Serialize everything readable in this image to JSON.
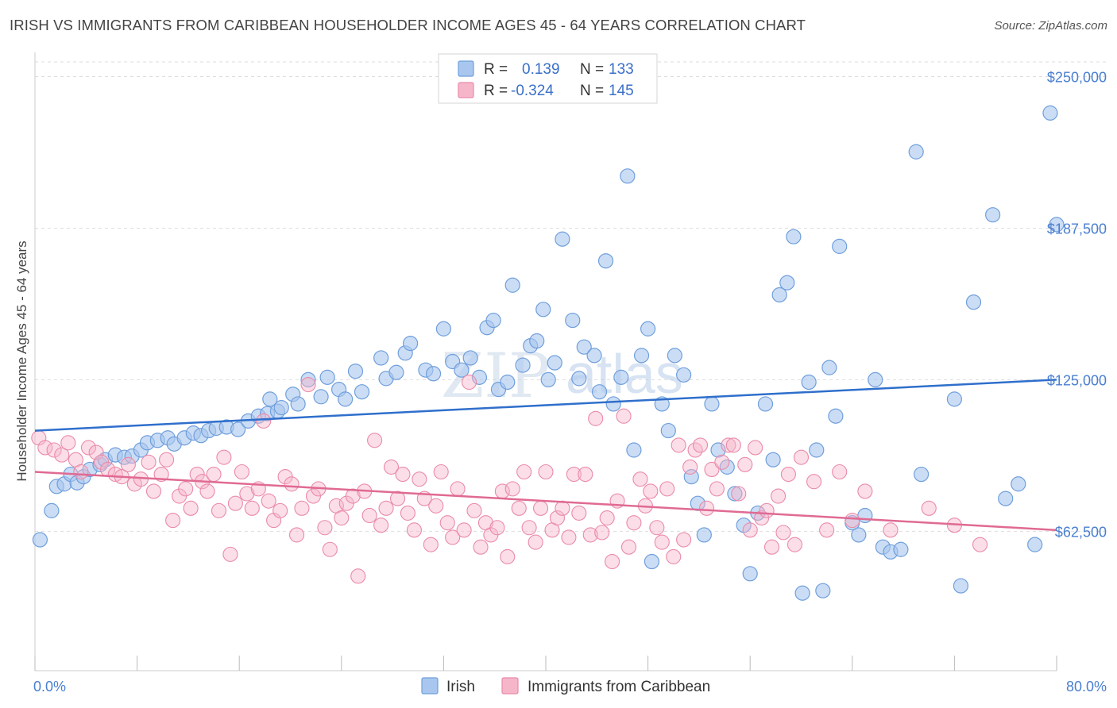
{
  "title": "IRISH VS IMMIGRANTS FROM CARIBBEAN HOUSEHOLDER INCOME AGES 45 - 64 YEARS CORRELATION CHART",
  "source": "Source: ZipAtlas.com",
  "watermark": {
    "zip": "ZIP",
    "atlas": "atlas"
  },
  "colors": {
    "irish_fill": "#a9c7ee",
    "irish_stroke": "#6f9fdc",
    "irish_line": "#2f6fcc",
    "carib_fill": "#f6b6c9",
    "carib_stroke": "#ea8aaa",
    "carib_line": "#e06a93",
    "grid": "#dddddd",
    "axis_text": "#4a7fd0"
  },
  "legend": {
    "rows": [
      {
        "r_label": "R =",
        "r_value": "0.139",
        "n_label": "N =",
        "n_value": "133"
      },
      {
        "r_label": "R =",
        "r_value": "-0.324",
        "n_label": "N =",
        "n_value": "145"
      }
    ]
  },
  "chart_data": {
    "type": "scatter",
    "title": "IRISH VS IMMIGRANTS FROM CARIBBEAN HOUSEHOLDER INCOME AGES 45 - 64 YEARS CORRELATION CHART",
    "ylabel": "Householder Income Ages 45 - 64 years",
    "xlim": [
      0,
      80
    ],
    "ylim": [
      5000,
      260000
    ],
    "x_tick_labels": [
      "0.0%",
      "80.0%"
    ],
    "y_ticks": [
      62500,
      125000,
      187500,
      250000
    ],
    "y_tick_labels": [
      "$62,500",
      "$125,000",
      "$187,500",
      "$250,000"
    ],
    "grid": true,
    "legend_placement": "top-center",
    "series": [
      {
        "name": "Irish",
        "trend": {
          "x": [
            0,
            80
          ],
          "y": [
            104000,
            125000
          ]
        },
        "points": [
          [
            0.4,
            59000
          ],
          [
            1.3,
            71000
          ],
          [
            1.7,
            81000
          ],
          [
            2.3,
            82000
          ],
          [
            2.8,
            86000
          ],
          [
            3.3,
            82500
          ],
          [
            3.8,
            85000
          ],
          [
            4.3,
            88000
          ],
          [
            5.1,
            90000
          ],
          [
            5.5,
            92000
          ],
          [
            6.3,
            94000
          ],
          [
            7.0,
            93000
          ],
          [
            7.6,
            93500
          ],
          [
            8.3,
            96000
          ],
          [
            8.8,
            99000
          ],
          [
            9.6,
            100000
          ],
          [
            10.4,
            101000
          ],
          [
            10.9,
            98500
          ],
          [
            11.7,
            101000
          ],
          [
            12.4,
            103000
          ],
          [
            13.0,
            102000
          ],
          [
            13.6,
            104000
          ],
          [
            14.2,
            105000
          ],
          [
            15.0,
            105500
          ],
          [
            15.9,
            104500
          ],
          [
            16.7,
            108000
          ],
          [
            17.5,
            110000
          ],
          [
            18.2,
            111000
          ],
          [
            19.0,
            112000
          ],
          [
            18.4,
            117000
          ],
          [
            19.3,
            113500
          ],
          [
            20.2,
            119000
          ],
          [
            20.6,
            115000
          ],
          [
            21.4,
            125000
          ],
          [
            22.4,
            118000
          ],
          [
            22.9,
            126000
          ],
          [
            23.8,
            121000
          ],
          [
            24.3,
            117000
          ],
          [
            25.1,
            128500
          ],
          [
            25.6,
            120000
          ],
          [
            27.1,
            134000
          ],
          [
            27.5,
            125500
          ],
          [
            28.3,
            128000
          ],
          [
            29.0,
            136000
          ],
          [
            29.4,
            140000
          ],
          [
            30.6,
            129000
          ],
          [
            31.2,
            127500
          ],
          [
            32.0,
            146000
          ],
          [
            32.7,
            132500
          ],
          [
            33.4,
            129000
          ],
          [
            34.1,
            134000
          ],
          [
            34.8,
            126000
          ],
          [
            35.4,
            146500
          ],
          [
            35.9,
            149500
          ],
          [
            36.3,
            121000
          ],
          [
            37.0,
            124000
          ],
          [
            37.4,
            164000
          ],
          [
            38.2,
            131000
          ],
          [
            38.8,
            139000
          ],
          [
            39.3,
            141000
          ],
          [
            39.8,
            154000
          ],
          [
            40.2,
            125000
          ],
          [
            40.7,
            132000
          ],
          [
            41.3,
            183000
          ],
          [
            42.1,
            149500
          ],
          [
            42.6,
            125500
          ],
          [
            43.0,
            138500
          ],
          [
            43.8,
            135000
          ],
          [
            44.2,
            120000
          ],
          [
            44.7,
            174000
          ],
          [
            45.3,
            115000
          ],
          [
            45.9,
            126000
          ],
          [
            46.4,
            209000
          ],
          [
            46.9,
            96000
          ],
          [
            47.5,
            135000
          ],
          [
            48.0,
            146000
          ],
          [
            48.3,
            50000
          ],
          [
            49.1,
            115000
          ],
          [
            49.6,
            104000
          ],
          [
            50.1,
            135000
          ],
          [
            50.8,
            127000
          ],
          [
            51.4,
            85000
          ],
          [
            51.9,
            74000
          ],
          [
            52.4,
            61000
          ],
          [
            53.0,
            115000
          ],
          [
            53.5,
            96000
          ],
          [
            54.2,
            89000
          ],
          [
            54.8,
            78000
          ],
          [
            55.5,
            65000
          ],
          [
            56.0,
            45000
          ],
          [
            56.6,
            70000
          ],
          [
            57.2,
            115000
          ],
          [
            57.8,
            92000
          ],
          [
            58.3,
            160000
          ],
          [
            58.9,
            165000
          ],
          [
            59.4,
            184000
          ],
          [
            60.1,
            37000
          ],
          [
            60.6,
            124000
          ],
          [
            61.2,
            96000
          ],
          [
            61.7,
            38000
          ],
          [
            62.2,
            130000
          ],
          [
            62.7,
            110000
          ],
          [
            63.0,
            180000
          ],
          [
            64.0,
            66000
          ],
          [
            64.5,
            61000
          ],
          [
            65.0,
            69000
          ],
          [
            65.8,
            125000
          ],
          [
            66.4,
            56000
          ],
          [
            67.0,
            54000
          ],
          [
            67.8,
            55000
          ],
          [
            69.0,
            219000
          ],
          [
            69.4,
            86000
          ],
          [
            72.0,
            117000
          ],
          [
            72.5,
            40000
          ],
          [
            73.5,
            157000
          ],
          [
            75.0,
            193000
          ],
          [
            76.0,
            76000
          ],
          [
            77.0,
            82000
          ],
          [
            78.3,
            57000
          ],
          [
            79.5,
            235000
          ],
          [
            80.0,
            189000
          ]
        ]
      },
      {
        "name": "Immigrants from Caribbean",
        "trend": {
          "x": [
            0,
            80
          ],
          "y": [
            87000,
            63000
          ]
        },
        "points": [
          [
            0.3,
            101000
          ],
          [
            0.8,
            97000
          ],
          [
            1.5,
            96000
          ],
          [
            2.1,
            94000
          ],
          [
            2.6,
            99000
          ],
          [
            3.2,
            92000
          ],
          [
            3.6,
            87000
          ],
          [
            4.2,
            97000
          ],
          [
            4.8,
            95000
          ],
          [
            5.2,
            91000
          ],
          [
            5.7,
            88000
          ],
          [
            6.3,
            86000
          ],
          [
            6.8,
            85000
          ],
          [
            7.3,
            90000
          ],
          [
            7.8,
            82000
          ],
          [
            8.3,
            84000
          ],
          [
            8.9,
            91000
          ],
          [
            9.3,
            79000
          ],
          [
            9.9,
            86000
          ],
          [
            10.3,
            92000
          ],
          [
            10.8,
            67000
          ],
          [
            11.3,
            77000
          ],
          [
            11.8,
            80000
          ],
          [
            12.2,
            72000
          ],
          [
            12.7,
            86000
          ],
          [
            13.1,
            83000
          ],
          [
            13.5,
            79000
          ],
          [
            14.0,
            86000
          ],
          [
            14.4,
            71000
          ],
          [
            14.8,
            93000
          ],
          [
            15.3,
            53000
          ],
          [
            15.7,
            74000
          ],
          [
            16.2,
            87000
          ],
          [
            16.6,
            78000
          ],
          [
            17.0,
            72000
          ],
          [
            17.5,
            80000
          ],
          [
            17.9,
            108000
          ],
          [
            18.3,
            75000
          ],
          [
            18.7,
            67000
          ],
          [
            19.2,
            71000
          ],
          [
            19.6,
            85000
          ],
          [
            20.1,
            82000
          ],
          [
            20.5,
            61000
          ],
          [
            20.9,
            72000
          ],
          [
            21.4,
            123000
          ],
          [
            21.8,
            77000
          ],
          [
            22.2,
            80000
          ],
          [
            22.7,
            64000
          ],
          [
            23.1,
            55000
          ],
          [
            23.6,
            73000
          ],
          [
            24.0,
            68000
          ],
          [
            24.4,
            74000
          ],
          [
            24.9,
            77000
          ],
          [
            25.3,
            44000
          ],
          [
            25.8,
            79000
          ],
          [
            26.2,
            69000
          ],
          [
            26.6,
            100000
          ],
          [
            27.1,
            65000
          ],
          [
            27.5,
            72000
          ],
          [
            27.9,
            89000
          ],
          [
            28.4,
            76000
          ],
          [
            28.8,
            86000
          ],
          [
            29.2,
            70000
          ],
          [
            29.7,
            63000
          ],
          [
            30.1,
            84000
          ],
          [
            30.5,
            76000
          ],
          [
            31.0,
            57000
          ],
          [
            31.4,
            73000
          ],
          [
            31.8,
            87000
          ],
          [
            32.3,
            66000
          ],
          [
            32.7,
            60000
          ],
          [
            33.1,
            80000
          ],
          [
            33.6,
            63000
          ],
          [
            34.0,
            124000
          ],
          [
            34.4,
            71000
          ],
          [
            34.9,
            56000
          ],
          [
            35.3,
            66000
          ],
          [
            35.7,
            61000
          ],
          [
            36.2,
            64000
          ],
          [
            36.6,
            79000
          ],
          [
            37.0,
            52000
          ],
          [
            37.4,
            80000
          ],
          [
            37.9,
            72000
          ],
          [
            38.3,
            87000
          ],
          [
            38.7,
            64000
          ],
          [
            39.2,
            58000
          ],
          [
            39.6,
            72000
          ],
          [
            40.0,
            87000
          ],
          [
            40.5,
            63000
          ],
          [
            40.9,
            68000
          ],
          [
            41.3,
            72000
          ],
          [
            41.8,
            60000
          ],
          [
            42.2,
            86000
          ],
          [
            42.6,
            70000
          ],
          [
            43.1,
            86000
          ],
          [
            43.5,
            61000
          ],
          [
            43.9,
            109000
          ],
          [
            44.4,
            62000
          ],
          [
            44.8,
            68000
          ],
          [
            45.2,
            50000
          ],
          [
            45.6,
            75000
          ],
          [
            46.1,
            110000
          ],
          [
            46.5,
            56000
          ],
          [
            46.9,
            66000
          ],
          [
            47.4,
            84000
          ],
          [
            47.8,
            73000
          ],
          [
            48.2,
            79000
          ],
          [
            48.7,
            64000
          ],
          [
            49.1,
            58000
          ],
          [
            49.5,
            80000
          ],
          [
            50.0,
            52000
          ],
          [
            50.4,
            98000
          ],
          [
            50.8,
            59000
          ],
          [
            51.3,
            89000
          ],
          [
            51.7,
            96000
          ],
          [
            52.1,
            98000
          ],
          [
            52.6,
            72000
          ],
          [
            53.0,
            88000
          ],
          [
            53.4,
            80000
          ],
          [
            53.8,
            91000
          ],
          [
            54.3,
            98000
          ],
          [
            54.7,
            98000
          ],
          [
            55.1,
            78000
          ],
          [
            55.6,
            90000
          ],
          [
            56.0,
            63000
          ],
          [
            56.4,
            97000
          ],
          [
            56.9,
            68000
          ],
          [
            57.3,
            71000
          ],
          [
            57.7,
            56000
          ],
          [
            58.2,
            77000
          ],
          [
            58.6,
            62000
          ],
          [
            59.0,
            86000
          ],
          [
            59.5,
            57000
          ],
          [
            60.0,
            93000
          ],
          [
            61.0,
            83000
          ],
          [
            62.0,
            63000
          ],
          [
            63.0,
            87000
          ],
          [
            64.0,
            67000
          ],
          [
            65.0,
            79000
          ],
          [
            67.0,
            63000
          ],
          [
            70.0,
            72000
          ],
          [
            72.0,
            65000
          ],
          [
            74.0,
            57000
          ]
        ]
      }
    ]
  }
}
